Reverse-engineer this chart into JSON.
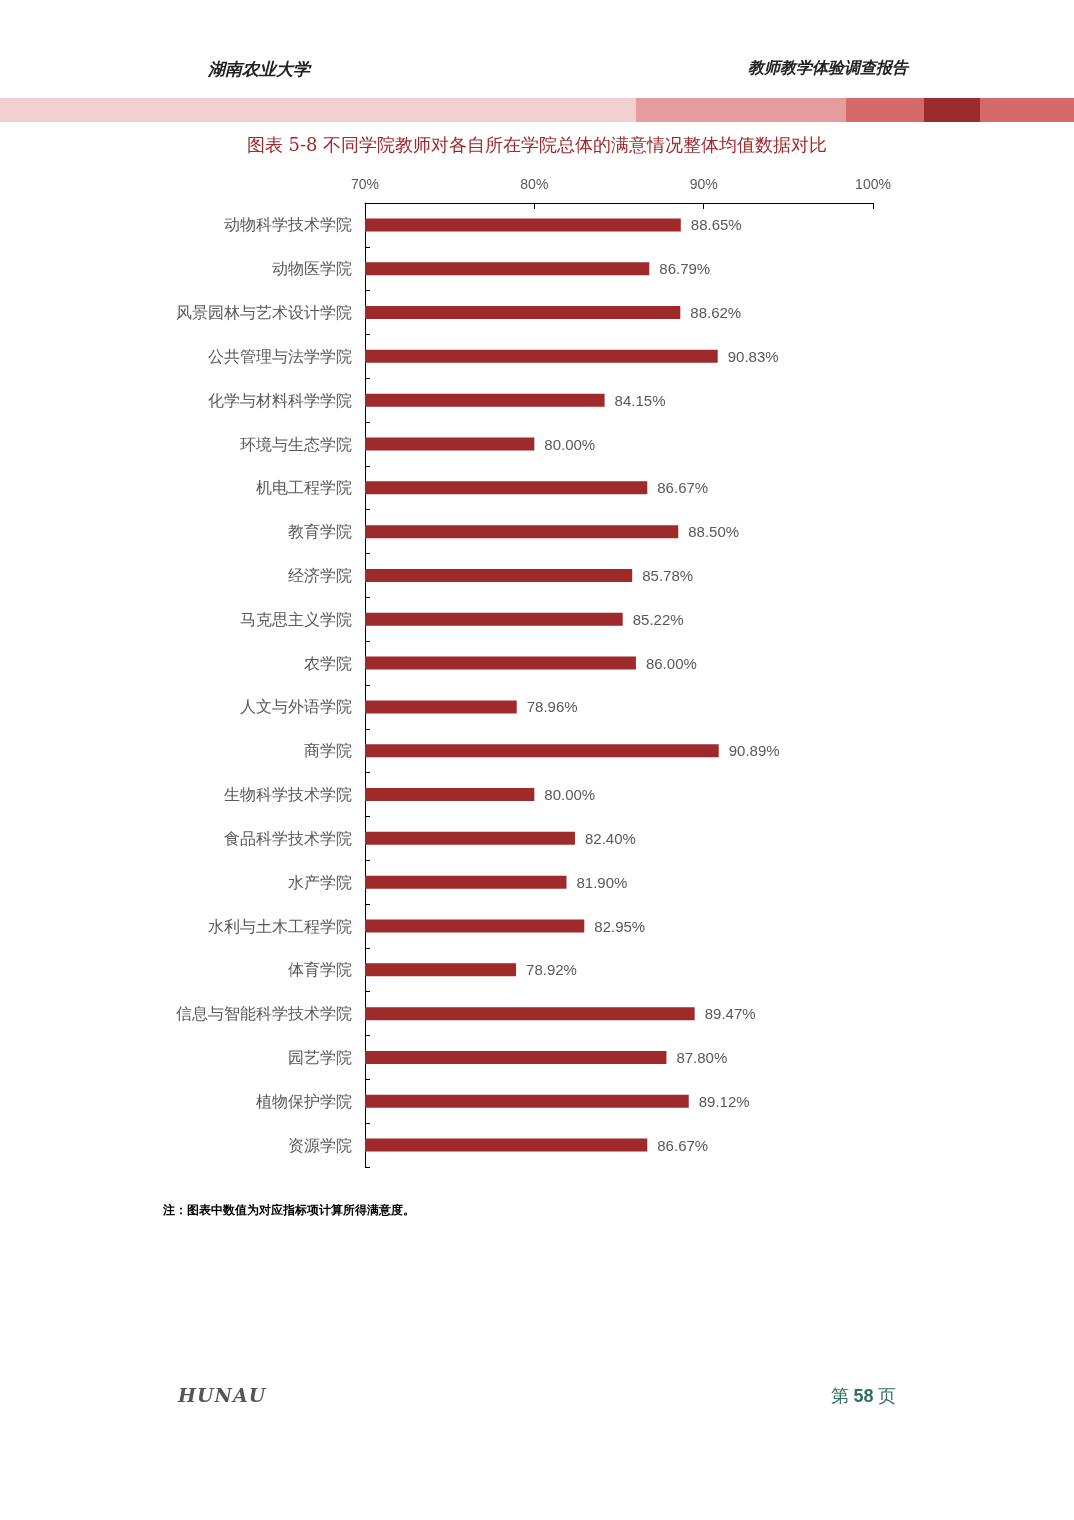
{
  "chart_data": {
    "type": "bar",
    "orientation": "horizontal",
    "title": "图表 5-8 不同学院教师对各自所在学院总体的满意情况整体均值数据对比",
    "categories": [
      "动物科学技术学院",
      "动物医学院",
      "风景园林与艺术设计学院",
      "公共管理与法学学院",
      "化学与材料科学学院",
      "环境与生态学院",
      "机电工程学院",
      "教育学院",
      "经济学院",
      "马克思主义学院",
      "农学院",
      "人文与外语学院",
      "商学院",
      "生物科学技术学院",
      "食品科学技术学院",
      "水产学院",
      "水利与土木工程学院",
      "体育学院",
      "信息与智能科学技术学院",
      "园艺学院",
      "植物保护学院",
      "资源学院"
    ],
    "values": [
      88.65,
      86.79,
      88.62,
      90.83,
      84.15,
      80.0,
      86.67,
      88.5,
      85.78,
      85.22,
      86.0,
      78.96,
      90.89,
      80.0,
      82.4,
      81.9,
      82.95,
      78.92,
      89.47,
      87.8,
      89.12,
      86.67
    ],
    "value_labels": [
      "88.65%",
      "86.79%",
      "88.62%",
      "90.83%",
      "84.15%",
      "80.00%",
      "86.67%",
      "88.50%",
      "85.78%",
      "85.22%",
      "86.00%",
      "78.96%",
      "90.89%",
      "80.00%",
      "82.40%",
      "81.90%",
      "82.95%",
      "78.92%",
      "89.47%",
      "87.80%",
      "89.12%",
      "86.67%"
    ],
    "color": "#9e2a2b",
    "xlim": [
      70,
      100
    ],
    "xticks": [
      {
        "value": 70,
        "label": "70%"
      },
      {
        "value": 80,
        "label": "80%"
      },
      {
        "value": 90,
        "label": "90%"
      },
      {
        "value": 100,
        "label": "100%"
      }
    ],
    "grid": false,
    "annotations": [
      "湖南农业大学",
      "教师教学体验调查报告",
      "注：图表中数值为对应指标项计算所得满意度。",
      "HUNAU",
      "第 58 页"
    ]
  }
}
